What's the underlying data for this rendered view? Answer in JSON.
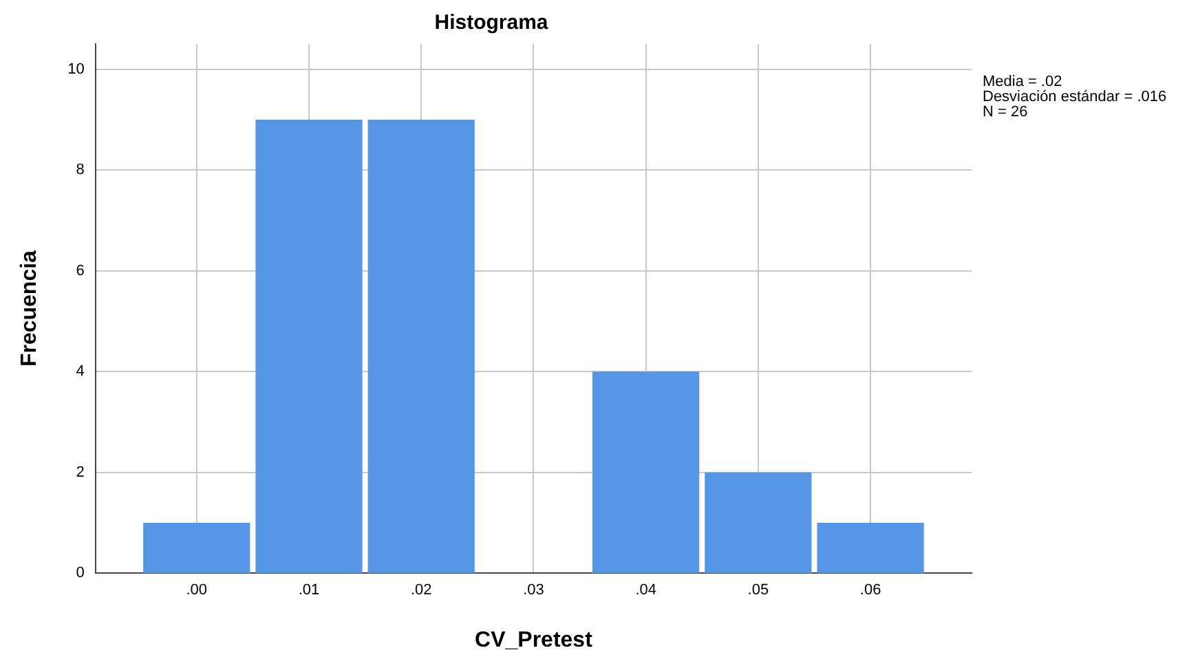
{
  "chart_data": {
    "type": "histogram",
    "title": "Histograma",
    "xlabel": "CV_Pretest",
    "ylabel": "Frecuencia",
    "bins": [
      -0.005,
      0.005,
      0.015,
      0.025,
      0.035,
      0.045,
      0.055,
      0.065
    ],
    "values": [
      1,
      9,
      9,
      0,
      4,
      2,
      1
    ],
    "color": "#5596e6",
    "xlim": [
      -0.009,
      0.069
    ],
    "xticks": [
      {
        "value": 0,
        "label": ".00"
      },
      {
        "value": 0.01,
        "label": ".01"
      },
      {
        "value": 0.02,
        "label": ".02"
      },
      {
        "value": 0.03,
        "label": ".03"
      },
      {
        "value": 0.04,
        "label": ".04"
      },
      {
        "value": 0.05,
        "label": ".05"
      },
      {
        "value": 0.06,
        "label": ".06"
      }
    ],
    "ylim": [
      0,
      10.5
    ],
    "yticks": [
      0,
      2,
      4,
      6,
      8,
      10
    ],
    "grid": true,
    "annotations": [
      "Media = .02",
      "Desviación estándar = .016",
      "N = 26"
    ]
  }
}
